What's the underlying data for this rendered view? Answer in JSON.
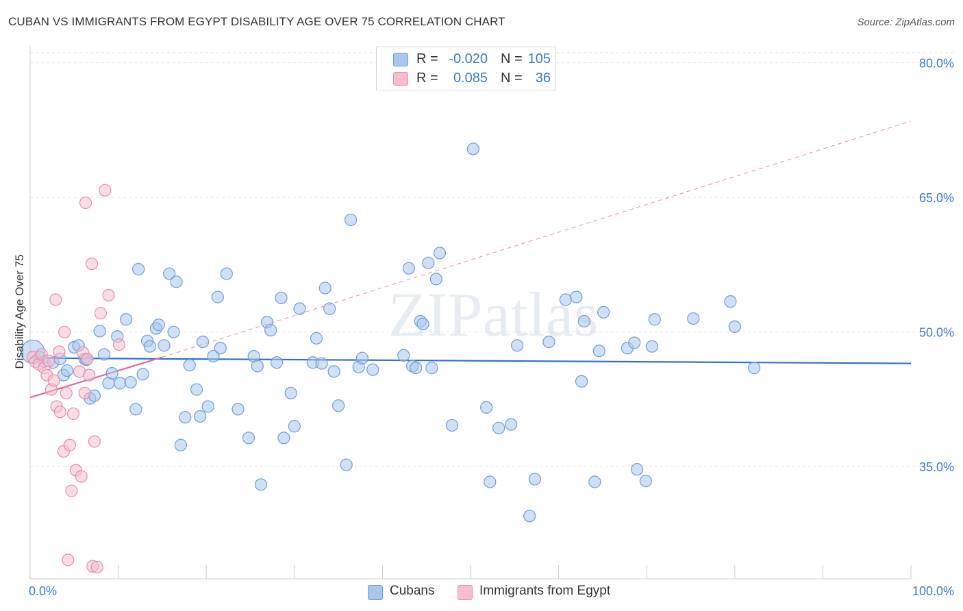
{
  "title": "CUBAN VS IMMIGRANTS FROM EGYPT DISABILITY AGE OVER 75 CORRELATION CHART",
  "source": "Source: ZipAtlas.com",
  "watermark": "ZIPatlas",
  "legend": {
    "r_label": "R =",
    "n_label": "N =",
    "series": [
      {
        "r": "-0.020",
        "n": "105"
      },
      {
        "r": "0.085",
        "n": "36"
      }
    ]
  },
  "colors": {
    "blue_fill": "#a9c6ef",
    "blue_stroke": "#6c9bdc",
    "blue_line": "#2f6fcf",
    "pink_fill": "#f6bfd0",
    "pink_stroke": "#e98aa8",
    "pink_line": "#e0679a",
    "axis_label": "#3a78cc",
    "grid": "#e2e2e2"
  },
  "chart_data": {
    "type": "scatter",
    "title": "CUBAN VS IMMIGRANTS FROM EGYPT DISABILITY AGE OVER 75 CORRELATION CHART",
    "xlabel": "",
    "ylabel": "Disability Age Over 75",
    "xlim": [
      0,
      100
    ],
    "ylim": [
      22.5,
      81.5
    ],
    "x_tick_labels": [
      "0.0%",
      "100.0%"
    ],
    "y_ticks": [
      35,
      50,
      65,
      80
    ],
    "y_tick_labels": [
      "35.0%",
      "50.0%",
      "65.0%",
      "80.0%"
    ],
    "series": [
      {
        "name": "Cubans",
        "r": -0.02,
        "n": 105,
        "trend": {
          "x0": 0,
          "y0": 47.1,
          "x1": 100,
          "y1": 46.5
        },
        "points": [
          {
            "x": 0.3,
            "y": 47.8,
            "big": true
          },
          {
            "x": 1.1,
            "y": 47.2
          },
          {
            "x": 1.6,
            "y": 46.7
          },
          {
            "x": 2.6,
            "y": 46.6
          },
          {
            "x": 3.4,
            "y": 47.0
          },
          {
            "x": 3.8,
            "y": 45.2
          },
          {
            "x": 4.2,
            "y": 45.7
          },
          {
            "x": 5.0,
            "y": 48.3
          },
          {
            "x": 5.5,
            "y": 48.5
          },
          {
            "x": 6.2,
            "y": 47.0
          },
          {
            "x": 6.4,
            "y": 46.9
          },
          {
            "x": 6.8,
            "y": 42.6
          },
          {
            "x": 7.3,
            "y": 42.9
          },
          {
            "x": 7.9,
            "y": 50.1
          },
          {
            "x": 8.4,
            "y": 47.5
          },
          {
            "x": 8.9,
            "y": 44.3
          },
          {
            "x": 9.3,
            "y": 45.4
          },
          {
            "x": 9.9,
            "y": 49.5
          },
          {
            "x": 10.2,
            "y": 44.3
          },
          {
            "x": 10.9,
            "y": 51.4
          },
          {
            "x": 11.4,
            "y": 44.4
          },
          {
            "x": 12.0,
            "y": 41.4
          },
          {
            "x": 12.3,
            "y": 57.0
          },
          {
            "x": 12.8,
            "y": 45.3
          },
          {
            "x": 13.3,
            "y": 49.0
          },
          {
            "x": 13.6,
            "y": 48.4
          },
          {
            "x": 14.3,
            "y": 50.4
          },
          {
            "x": 14.6,
            "y": 50.8
          },
          {
            "x": 15.2,
            "y": 48.5
          },
          {
            "x": 15.8,
            "y": 56.5
          },
          {
            "x": 16.3,
            "y": 50.0
          },
          {
            "x": 16.6,
            "y": 55.6
          },
          {
            "x": 17.1,
            "y": 37.4
          },
          {
            "x": 17.6,
            "y": 40.5
          },
          {
            "x": 18.1,
            "y": 46.3
          },
          {
            "x": 18.9,
            "y": 43.6
          },
          {
            "x": 19.3,
            "y": 40.6
          },
          {
            "x": 19.6,
            "y": 48.9
          },
          {
            "x": 20.2,
            "y": 41.7
          },
          {
            "x": 20.8,
            "y": 47.3
          },
          {
            "x": 21.3,
            "y": 53.9
          },
          {
            "x": 21.6,
            "y": 48.2
          },
          {
            "x": 22.3,
            "y": 56.5
          },
          {
            "x": 23.6,
            "y": 41.4
          },
          {
            "x": 24.8,
            "y": 38.2
          },
          {
            "x": 25.4,
            "y": 47.3
          },
          {
            "x": 25.8,
            "y": 46.2
          },
          {
            "x": 26.2,
            "y": 33.0
          },
          {
            "x": 26.9,
            "y": 51.1
          },
          {
            "x": 27.3,
            "y": 50.2
          },
          {
            "x": 28.0,
            "y": 46.6
          },
          {
            "x": 28.5,
            "y": 53.8
          },
          {
            "x": 28.8,
            "y": 38.2
          },
          {
            "x": 29.6,
            "y": 43.2
          },
          {
            "x": 30.0,
            "y": 39.5
          },
          {
            "x": 30.6,
            "y": 52.6
          },
          {
            "x": 32.1,
            "y": 46.6
          },
          {
            "x": 32.5,
            "y": 49.3
          },
          {
            "x": 33.1,
            "y": 46.5
          },
          {
            "x": 33.5,
            "y": 54.9
          },
          {
            "x": 34.0,
            "y": 52.6
          },
          {
            "x": 34.5,
            "y": 45.6
          },
          {
            "x": 35.0,
            "y": 41.8
          },
          {
            "x": 35.9,
            "y": 35.2
          },
          {
            "x": 36.4,
            "y": 62.5
          },
          {
            "x": 37.3,
            "y": 46.1
          },
          {
            "x": 37.7,
            "y": 47.1
          },
          {
            "x": 38.9,
            "y": 45.8
          },
          {
            "x": 42.4,
            "y": 47.4
          },
          {
            "x": 43.0,
            "y": 57.1
          },
          {
            "x": 43.4,
            "y": 46.2
          },
          {
            "x": 43.8,
            "y": 46.0
          },
          {
            "x": 44.3,
            "y": 51.2
          },
          {
            "x": 44.6,
            "y": 50.9
          },
          {
            "x": 45.2,
            "y": 57.7
          },
          {
            "x": 45.6,
            "y": 46.0
          },
          {
            "x": 46.1,
            "y": 55.9
          },
          {
            "x": 46.5,
            "y": 58.8
          },
          {
            "x": 47.9,
            "y": 39.6
          },
          {
            "x": 50.3,
            "y": 70.4
          },
          {
            "x": 51.8,
            "y": 41.6
          },
          {
            "x": 52.2,
            "y": 33.3
          },
          {
            "x": 53.2,
            "y": 39.3
          },
          {
            "x": 54.6,
            "y": 39.7
          },
          {
            "x": 55.3,
            "y": 48.5
          },
          {
            "x": 56.7,
            "y": 29.5
          },
          {
            "x": 57.3,
            "y": 33.6
          },
          {
            "x": 58.9,
            "y": 48.9
          },
          {
            "x": 60.8,
            "y": 53.6
          },
          {
            "x": 62.0,
            "y": 53.9
          },
          {
            "x": 62.6,
            "y": 44.5
          },
          {
            "x": 62.9,
            "y": 51.2
          },
          {
            "x": 64.1,
            "y": 33.3
          },
          {
            "x": 64.6,
            "y": 47.9
          },
          {
            "x": 65.1,
            "y": 52.2
          },
          {
            "x": 67.8,
            "y": 48.2
          },
          {
            "x": 68.6,
            "y": 48.8
          },
          {
            "x": 68.9,
            "y": 34.7
          },
          {
            "x": 69.9,
            "y": 33.4
          },
          {
            "x": 70.6,
            "y": 48.4
          },
          {
            "x": 70.9,
            "y": 51.4
          },
          {
            "x": 75.3,
            "y": 51.5
          },
          {
            "x": 79.5,
            "y": 53.4
          },
          {
            "x": 80.0,
            "y": 50.6
          },
          {
            "x": 82.2,
            "y": 46.0
          }
        ]
      },
      {
        "name": "Immigrants from Egypt",
        "r": 0.085,
        "n": 36,
        "trend": {
          "x0": 0,
          "y0": 42.7,
          "x1": 15,
          "y1": 47.2
        },
        "trend_extension": {
          "x0": 15,
          "y0": 47.2,
          "x1": 100,
          "y1": 73.5
        },
        "points": [
          {
            "x": 0.3,
            "y": 47.2
          },
          {
            "x": 0.6,
            "y": 46.7
          },
          {
            "x": 1.0,
            "y": 46.4
          },
          {
            "x": 1.3,
            "y": 47.5
          },
          {
            "x": 1.6,
            "y": 46.0
          },
          {
            "x": 1.9,
            "y": 45.2
          },
          {
            "x": 2.1,
            "y": 46.8
          },
          {
            "x": 2.4,
            "y": 43.6
          },
          {
            "x": 2.7,
            "y": 44.6
          },
          {
            "x": 2.9,
            "y": 53.6
          },
          {
            "x": 3.0,
            "y": 41.7
          },
          {
            "x": 3.3,
            "y": 47.8
          },
          {
            "x": 3.4,
            "y": 41.1
          },
          {
            "x": 3.8,
            "y": 36.7
          },
          {
            "x": 3.9,
            "y": 50.0
          },
          {
            "x": 4.1,
            "y": 43.2
          },
          {
            "x": 4.3,
            "y": 24.6
          },
          {
            "x": 4.5,
            "y": 37.4
          },
          {
            "x": 4.7,
            "y": 32.3
          },
          {
            "x": 4.9,
            "y": 40.9
          },
          {
            "x": 5.2,
            "y": 34.6
          },
          {
            "x": 5.6,
            "y": 45.6
          },
          {
            "x": 5.8,
            "y": 33.9
          },
          {
            "x": 6.0,
            "y": 47.7
          },
          {
            "x": 6.2,
            "y": 43.2
          },
          {
            "x": 6.3,
            "y": 64.4
          },
          {
            "x": 6.5,
            "y": 47.0
          },
          {
            "x": 6.7,
            "y": 45.2
          },
          {
            "x": 7.0,
            "y": 57.6
          },
          {
            "x": 7.1,
            "y": 23.9
          },
          {
            "x": 7.3,
            "y": 37.8
          },
          {
            "x": 7.6,
            "y": 23.8
          },
          {
            "x": 8.0,
            "y": 52.1
          },
          {
            "x": 8.5,
            "y": 65.8
          },
          {
            "x": 8.9,
            "y": 54.1
          },
          {
            "x": 10.1,
            "y": 48.6
          }
        ]
      }
    ]
  },
  "bottom_legend": [
    "Cubans",
    "Immigrants from Egypt"
  ]
}
